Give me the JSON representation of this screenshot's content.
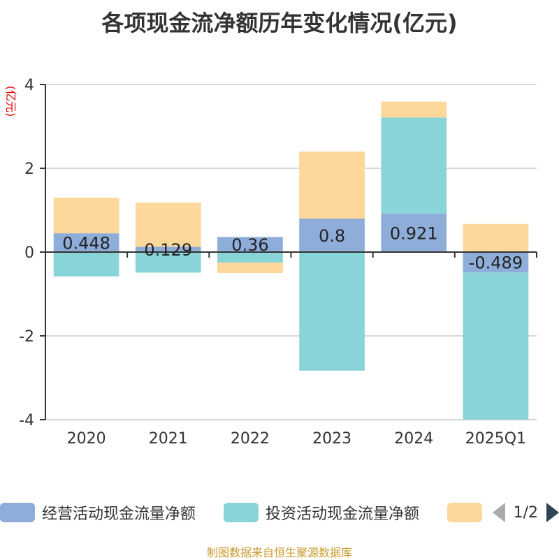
{
  "chart_data": {
    "type": "bar",
    "stacked": true,
    "title": "各项现金流净额历年变化情况(亿元)",
    "ylabel": "(亿元)",
    "xlabel": "",
    "ylim": [
      -4,
      4
    ],
    "yticks": [
      -4,
      -2,
      0,
      2,
      4
    ],
    "grid": true,
    "legend_position": "bottom",
    "categories": [
      "2020",
      "2021",
      "2022",
      "2023",
      "2024",
      "2025Q1"
    ],
    "series": [
      {
        "name": "经营活动现金流量净额",
        "color": "#8fadd9",
        "values": [
          0.448,
          0.129,
          0.36,
          0.8,
          0.921,
          -0.489
        ],
        "labels": [
          "0.448",
          "0.129",
          "0.36",
          "0.8",
          "0.921",
          "-0.489"
        ]
      },
      {
        "name": "投资活动现金流量净额",
        "color": "#88d4d8",
        "values": [
          -0.58,
          -0.49,
          -0.25,
          -2.83,
          2.29,
          -3.51
        ]
      },
      {
        "name": "",
        "color": "#fdd89a",
        "values": [
          0.85,
          1.05,
          -0.25,
          1.6,
          0.38,
          0.67
        ]
      }
    ]
  },
  "legend": {
    "page": "1/2"
  },
  "source": "制图数据来自恒生聚源数据库"
}
